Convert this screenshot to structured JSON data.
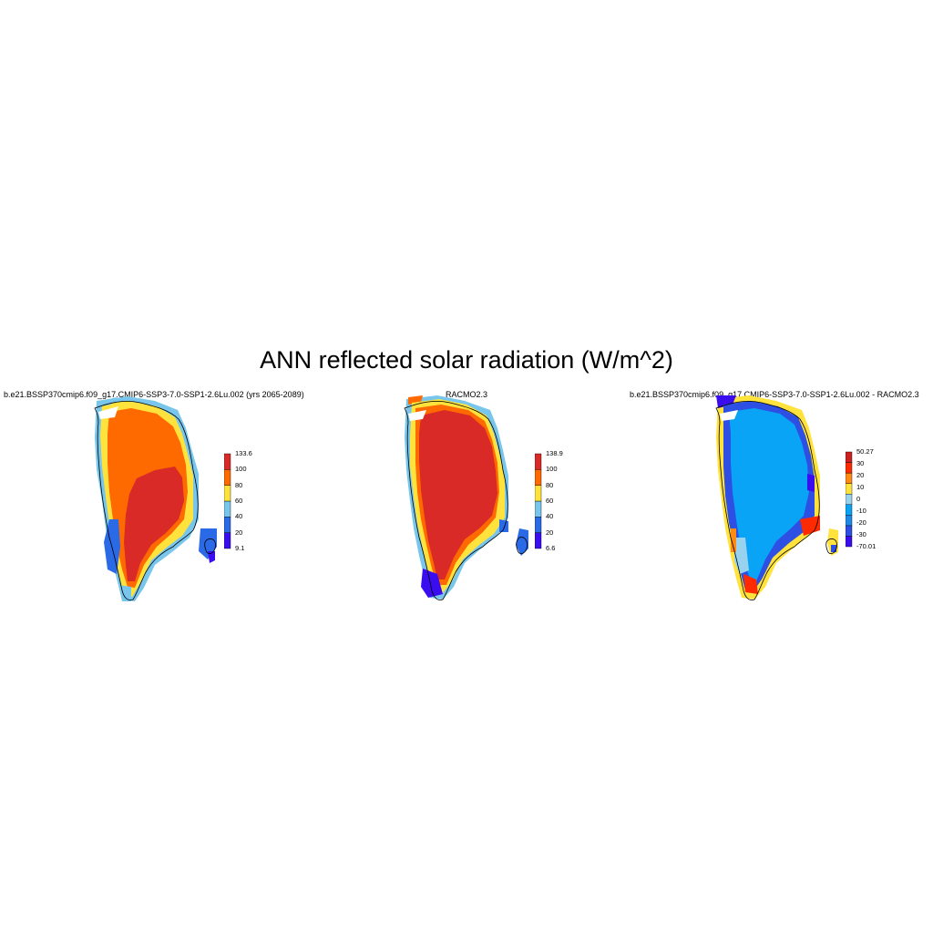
{
  "title": "ANN reflected solar radiation (W/m^2)",
  "panels": [
    {
      "title": "b.e21.BSSP370cmip6.f09_g17.CMIP6-SSP3-7.0-SSP1-2.6Lu.002 (yrs 2065-2089)",
      "colorbar": {
        "colors": [
          "#3a0df0",
          "#2a6ae6",
          "#78c6ec",
          "#ffe33c",
          "#ff6a00",
          "#d92a28"
        ],
        "labels": [
          "133.6",
          "100",
          "80",
          "60",
          "40",
          "20",
          "9.1"
        ]
      }
    },
    {
      "title": "RACMO2.3",
      "colorbar": {
        "colors": [
          "#3a0df0",
          "#2a6ae6",
          "#78c6ec",
          "#ffe33c",
          "#ff6a00",
          "#d92a28"
        ],
        "labels": [
          "138.9",
          "100",
          "80",
          "60",
          "40",
          "20",
          "6.6"
        ]
      }
    },
    {
      "title": "b.e21.BSSP370cmip6.f09_g17.CMIP6-SSP3-7.0-SSP1-2.6Lu.002 - RACMO2.3",
      "colorbar": {
        "colors": [
          "#3a0df0",
          "#2d4fe3",
          "#1e8ae8",
          "#0aa4f6",
          "#98d2ee",
          "#ffe33c",
          "#ff8a14",
          "#ff2a00",
          "#cc2020"
        ],
        "labels": [
          "50.27",
          "30",
          "20",
          "10",
          "0",
          "-10",
          "-20",
          "-30",
          "-70.01"
        ]
      }
    }
  ]
}
